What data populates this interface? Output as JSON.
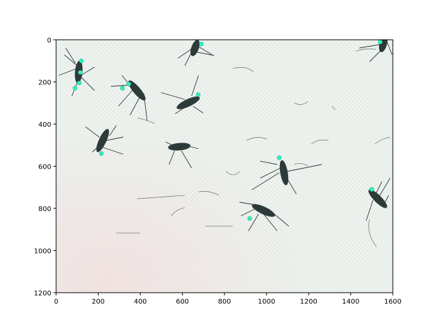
{
  "figure": {
    "x_axis": {
      "ticks": [
        "0",
        "200",
        "400",
        "600",
        "800",
        "1000",
        "1200",
        "1400",
        "1600"
      ]
    },
    "y_axis": {
      "ticks": [
        "0",
        "200",
        "400",
        "600",
        "800",
        "1000",
        "1200"
      ]
    }
  },
  "image": {
    "subject": "photograph of mosquitoes on a white textured mesh/paper surface with cyan keypoint markers",
    "background_color": "#e9efea",
    "insect_color": "#2d3a3a",
    "marker_color": "#2ef2c0"
  },
  "markers": [
    {
      "x": 120,
      "y": 100
    },
    {
      "x": 115,
      "y": 155
    },
    {
      "x": 110,
      "y": 205
    },
    {
      "x": 90,
      "y": 230
    },
    {
      "x": 345,
      "y": 210
    },
    {
      "x": 315,
      "y": 230
    },
    {
      "x": 675,
      "y": 260
    },
    {
      "x": 690,
      "y": 20
    },
    {
      "x": 1540,
      "y": 10
    },
    {
      "x": 215,
      "y": 540
    },
    {
      "x": 1060,
      "y": 560
    },
    {
      "x": 1500,
      "y": 710
    },
    {
      "x": 920,
      "y": 848
    }
  ]
}
